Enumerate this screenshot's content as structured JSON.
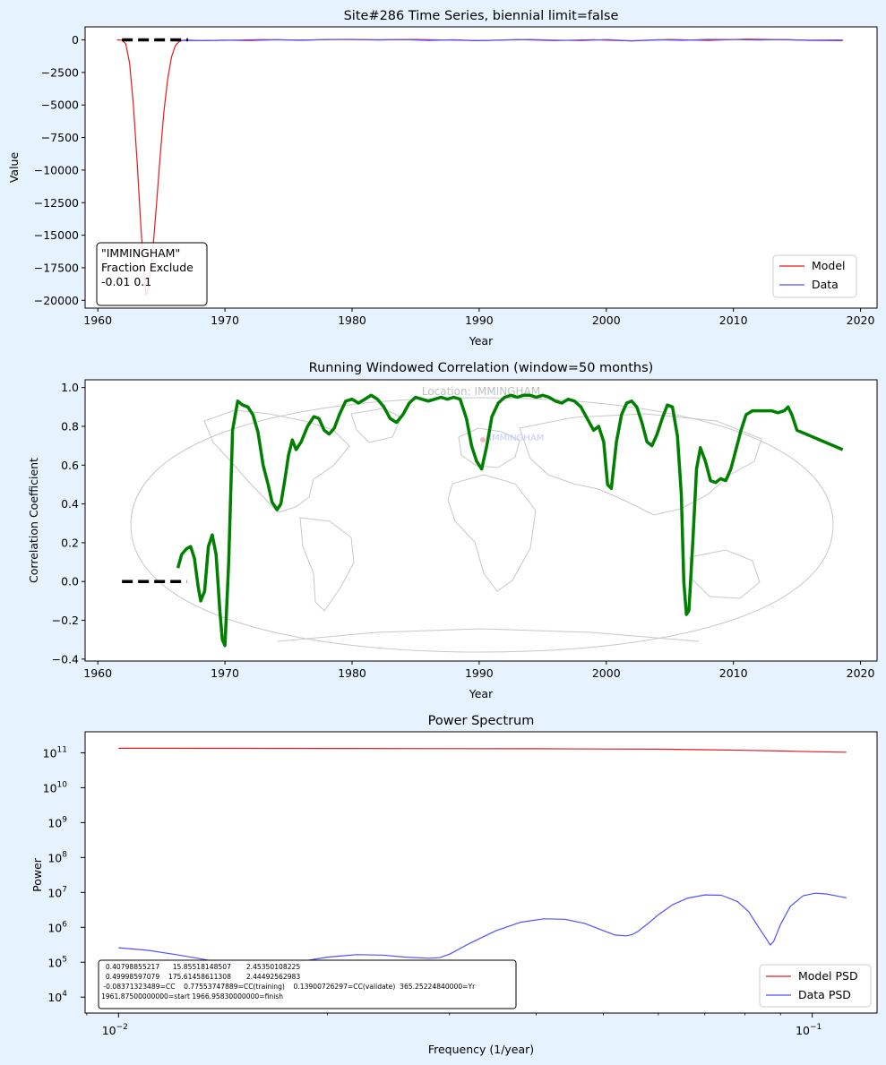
{
  "colors": {
    "background": "#e6f2fe",
    "model": "#e41a1c",
    "data": "#5050ff",
    "correlation": "#008000",
    "dashed": "#000000",
    "map": "#c8c8c8"
  },
  "chart_data": [
    {
      "type": "line",
      "title": "Site#286 Time Series, biennial limit=false",
      "xlabel": "Year",
      "ylabel": "Value",
      "xlim": [
        1959,
        2021.3
      ],
      "ylim": [
        -20600,
        1000
      ],
      "xticks": [
        1960,
        1970,
        1980,
        1990,
        2000,
        2010,
        2020
      ],
      "yticks": [
        0,
        -2500,
        -5000,
        -7500,
        -10000,
        -12500,
        -15000,
        -17500,
        -20000
      ],
      "ytick_labels": [
        "0",
        "−2500",
        "−5000",
        "−7500",
        "−10000",
        "−12500",
        "−15000",
        "−17500",
        "−20000"
      ],
      "legend": {
        "position": "lower-right",
        "entries": [
          "Model",
          "Data"
        ]
      },
      "annotation": {
        "lines": [
          "\"IMMINGHAM\"",
          "Fraction Exclude",
          "-0.01 0.1"
        ]
      },
      "excluded_interval": {
        "x": [
          1961.9,
          1967.1
        ],
        "y": 0
      },
      "series": [
        {
          "name": "Model",
          "color": "#e41a1c",
          "x": [
            1961.5,
            1961.9,
            1962.2,
            1962.5,
            1962.8,
            1963.1,
            1963.4,
            1963.7,
            1963.8,
            1964.0,
            1964.3,
            1964.6,
            1964.9,
            1965.2,
            1965.5,
            1965.8,
            1966.1,
            1966.4,
            1966.7,
            1967.0,
            1968,
            1970,
            1973,
            1976,
            1979,
            1982,
            1985,
            1988,
            1990,
            1993,
            1996,
            1999,
            2002,
            2005,
            2008,
            2011,
            2014,
            2016,
            2018.6
          ],
          "y": [
            0,
            -20,
            -300,
            -1800,
            -5000,
            -9500,
            -14500,
            -18700,
            -19600,
            -19000,
            -16500,
            -12800,
            -9000,
            -5500,
            -3000,
            -1300,
            -450,
            -120,
            -30,
            -10,
            -60,
            -30,
            20,
            -10,
            40,
            10,
            30,
            -20,
            -60,
            20,
            -50,
            10,
            -70,
            30,
            -40,
            60,
            10,
            -20,
            -10
          ]
        },
        {
          "name": "Data",
          "color": "#5050ff",
          "x": [
            1966.4,
            1968,
            1970,
            1972,
            1974,
            1976,
            1978,
            1980,
            1982,
            1984,
            1986,
            1988,
            1990,
            1992,
            1994,
            1996,
            1998,
            2000,
            2002,
            2004,
            2006,
            2008,
            2010,
            2012,
            2014,
            2016,
            2018.6
          ],
          "y": [
            -40,
            -60,
            -20,
            -50,
            10,
            -30,
            20,
            40,
            -10,
            30,
            -40,
            10,
            -60,
            -10,
            30,
            -20,
            -50,
            20,
            -70,
            10,
            -30,
            40,
            20,
            -10,
            30,
            -40,
            -60
          ]
        }
      ]
    },
    {
      "type": "line",
      "title": "Running Windowed Correlation (window=50 months)",
      "xlabel": "Year",
      "ylabel": "Correlation Coefficient",
      "xlim": [
        1959,
        2021.3
      ],
      "ylim": [
        -0.41,
        1.04
      ],
      "xticks": [
        1960,
        1970,
        1980,
        1990,
        2000,
        2010,
        2020
      ],
      "yticks": [
        -0.4,
        -0.2,
        0.0,
        0.2,
        0.4,
        0.6,
        0.8,
        1.0
      ],
      "ytick_labels": [
        "−0.4",
        "−0.2",
        "0.0",
        "0.2",
        "0.4",
        "0.6",
        "0.8",
        "1.0"
      ],
      "background_map": {
        "watermark": "Location: IMMINGHAM",
        "marker_label": "IMMINGHAM"
      },
      "excluded_interval": {
        "x": [
          1961.9,
          1967.0
        ],
        "y": 0
      },
      "series": [
        {
          "name": "",
          "color": "#008000",
          "x": [
            1966.3,
            1966.6,
            1967.0,
            1967.3,
            1967.6,
            1967.9,
            1968.1,
            1968.4,
            1968.7,
            1969.0,
            1969.3,
            1969.6,
            1969.8,
            1970.0,
            1970.3,
            1970.6,
            1971.0,
            1971.4,
            1971.8,
            1972.2,
            1972.6,
            1973.0,
            1973.4,
            1973.7,
            1974.1,
            1974.4,
            1974.7,
            1975.0,
            1975.3,
            1975.6,
            1976.0,
            1976.5,
            1977.0,
            1977.4,
            1977.8,
            1978.2,
            1978.6,
            1979.0,
            1979.5,
            1980.0,
            1980.5,
            1981.0,
            1981.5,
            1982.0,
            1982.5,
            1983.0,
            1983.5,
            1984.0,
            1984.5,
            1985.0,
            1985.5,
            1986.0,
            1986.5,
            1987.0,
            1987.5,
            1988.0,
            1988.5,
            1989.0,
            1989.4,
            1989.8,
            1990.2,
            1990.6,
            1991.0,
            1991.5,
            1992.0,
            1992.5,
            1993.0,
            1993.5,
            1994.0,
            1994.5,
            1995.0,
            1995.5,
            1996.0,
            1996.5,
            1997.0,
            1997.5,
            1998.0,
            1998.5,
            1999.0,
            1999.4,
            1999.8,
            2000.1,
            2000.4,
            2000.8,
            2001.2,
            2001.6,
            2002.0,
            2002.4,
            2002.8,
            2003.2,
            2003.6,
            2004.0,
            2004.4,
            2004.8,
            2005.2,
            2005.6,
            2005.9,
            2006.1,
            2006.3,
            2006.5,
            2006.8,
            2007.1,
            2007.4,
            2007.8,
            2008.2,
            2008.6,
            2009.0,
            2009.4,
            2009.8,
            2010.2,
            2010.6,
            2011.0,
            2011.5,
            2012.0,
            2012.5,
            2013.0,
            2013.5,
            2014.0,
            2014.3,
            2014.6,
            2015.0,
            2018.6
          ],
          "y": [
            0.07,
            0.14,
            0.17,
            0.18,
            0.12,
            -0.03,
            -0.1,
            -0.05,
            0.18,
            0.24,
            0.14,
            -0.15,
            -0.3,
            -0.33,
            0.1,
            0.78,
            0.93,
            0.91,
            0.9,
            0.86,
            0.77,
            0.6,
            0.5,
            0.41,
            0.37,
            0.4,
            0.52,
            0.65,
            0.73,
            0.68,
            0.72,
            0.8,
            0.85,
            0.84,
            0.78,
            0.76,
            0.79,
            0.86,
            0.93,
            0.94,
            0.92,
            0.94,
            0.96,
            0.94,
            0.9,
            0.84,
            0.82,
            0.86,
            0.92,
            0.95,
            0.94,
            0.93,
            0.94,
            0.95,
            0.94,
            0.95,
            0.94,
            0.84,
            0.7,
            0.62,
            0.58,
            0.7,
            0.85,
            0.92,
            0.95,
            0.96,
            0.95,
            0.96,
            0.96,
            0.95,
            0.96,
            0.95,
            0.93,
            0.92,
            0.94,
            0.93,
            0.9,
            0.84,
            0.78,
            0.8,
            0.72,
            0.5,
            0.48,
            0.72,
            0.86,
            0.92,
            0.93,
            0.9,
            0.82,
            0.72,
            0.7,
            0.76,
            0.84,
            0.91,
            0.9,
            0.75,
            0.45,
            0.0,
            -0.17,
            -0.15,
            0.2,
            0.58,
            0.69,
            0.62,
            0.52,
            0.51,
            0.53,
            0.52,
            0.58,
            0.68,
            0.78,
            0.86,
            0.88,
            0.88,
            0.88,
            0.88,
            0.87,
            0.88,
            0.9,
            0.86,
            0.78,
            0.68
          ]
        }
      ]
    },
    {
      "type": "line",
      "title": "Power Spectrum",
      "xlabel": "Frequency (1/year)",
      "ylabel": "Power",
      "xscale": "log",
      "yscale": "log",
      "xlim": [
        0.00895,
        0.124
      ],
      "ylim": [
        3500,
        400000000000
      ],
      "xtick_exponents": [
        -2,
        -1
      ],
      "ytick_exponents": [
        4,
        5,
        6,
        7,
        8,
        9,
        10,
        11
      ],
      "tick_base": "10",
      "legend": {
        "position": "lower-right",
        "entries": [
          "Model PSD",
          "Data PSD"
        ]
      },
      "annotation": {
        "lines": [
          "  0.40798855217      15.85518148507       2.45350108225",
          "  0.49998597079    175.61458611308       2.44492562983",
          " -0.08371323489=CC    0.77553747889=CC(training)    0.13900726297=CC(validate)  365.25224840000=Yr",
          "1961.87500000000=start 1966.95830000000=finish"
        ]
      },
      "series": [
        {
          "name": "Model PSD",
          "color": "#e41a1c",
          "x": [
            0.01,
            0.015,
            0.02,
            0.03,
            0.04,
            0.05,
            0.06,
            0.07,
            0.08,
            0.09,
            0.1,
            0.112
          ],
          "y": [
            135000000000,
            134000000000,
            133000000000,
            132000000000,
            131000000000,
            129000000000,
            127000000000,
            123000000000,
            118000000000,
            113000000000,
            108000000000,
            104000000000
          ]
        },
        {
          "name": "Data PSD",
          "color": "#5050ff",
          "x": [
            0.01,
            0.011,
            0.012,
            0.013,
            0.014,
            0.015,
            0.0165,
            0.018,
            0.02,
            0.022,
            0.024,
            0.026,
            0.028,
            0.029,
            0.03,
            0.032,
            0.035,
            0.038,
            0.041,
            0.044,
            0.047,
            0.05,
            0.052,
            0.054,
            0.055,
            0.056,
            0.058,
            0.06,
            0.063,
            0.066,
            0.07,
            0.074,
            0.078,
            0.081,
            0.084,
            0.086,
            0.087,
            0.088,
            0.09,
            0.093,
            0.097,
            0.101,
            0.105,
            0.11,
            0.112
          ],
          "y": [
            260000,
            220000,
            170000,
            130000,
            100000,
            85000,
            80000,
            100000,
            140000,
            165000,
            160000,
            140000,
            130000,
            135000,
            170000,
            340000,
            800000,
            1400000,
            1750000,
            1700000,
            1300000,
            800000,
            600000,
            570000,
            620000,
            750000,
            1300000,
            2300000,
            4500000,
            6800000,
            8500000,
            8300000,
            5500000,
            2800000,
            900000,
            450000,
            310000,
            400000,
            1200000,
            4000000,
            8000000,
            9500000,
            9000000,
            7500000,
            7000000
          ]
        }
      ]
    }
  ]
}
